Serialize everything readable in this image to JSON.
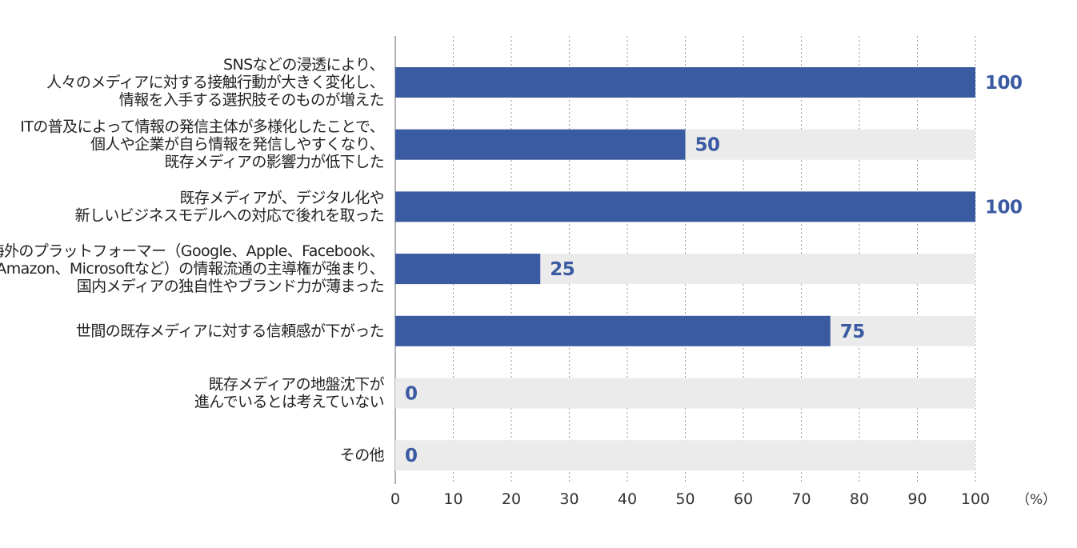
{
  "chart_data": {
    "type": "bar",
    "orientation": "horizontal",
    "categories": [
      [
        "SNSなどの浸透により、",
        "人々のメディアに対する接触行動が大きく変化し、",
        "情報を入手する選択肢そのものが増えた"
      ],
      [
        "ITの普及によって情報の発信主体が多様化したことで、",
        "個人や企業が自ら情報を発信しやすくなり、",
        "既存メディアの影響力が低下した"
      ],
      [
        "既存メディアが、デジタル化や",
        "新しいビジネスモデルへの対応で後れを取った"
      ],
      [
        "海外のプラットフォーマー（Google、Apple、Facebook、",
        "Amazon、Microsoftなど）の情報流通の主導権が強まり、",
        "国内メディアの独自性やブランド力が薄まった"
      ],
      [
        "世間の既存メディアに対する信頼感が下がった"
      ],
      [
        "既存メディアの地盤沈下が",
        "進んでいるとは考えていない"
      ],
      [
        "その他"
      ]
    ],
    "values": [
      100,
      50,
      100,
      25,
      75,
      0,
      0
    ],
    "value_labels": [
      "100",
      "50",
      "100",
      "25",
      "75",
      "0",
      "0"
    ],
    "xlim": [
      0,
      100
    ],
    "xticks": [
      "0",
      "10",
      "20",
      "30",
      "40",
      "50",
      "60",
      "70",
      "80",
      "90",
      "100"
    ],
    "unit": "（%）",
    "grid": "vertical dotted",
    "colors": {
      "bar": "#3a5aa1",
      "track": "#ebebeb",
      "value_text": "#3a5aa1"
    }
  }
}
